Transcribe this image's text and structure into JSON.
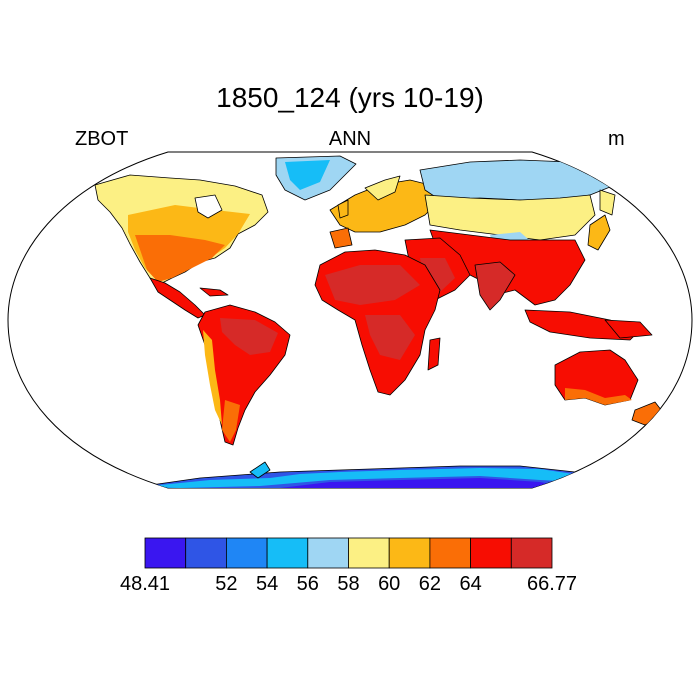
{
  "title": "1850_124 (yrs 10-19)",
  "subtitle_left": "ZBOT",
  "subtitle_center": "ANN",
  "subtitle_right": "m",
  "colorbar": {
    "colors": [
      "#3a16f0",
      "#2f55e6",
      "#1f86f5",
      "#16bdf7",
      "#9fd6f3",
      "#fcf084",
      "#fcb816",
      "#fa6e06",
      "#f70d02",
      "#d62a28"
    ],
    "labels": [
      "48.41",
      "52",
      "54",
      "56",
      "58",
      "60",
      "62",
      "64",
      "66.77"
    ]
  },
  "map": {
    "projection": "robinson",
    "ocean_color": "#ffffff",
    "coastline_color": "#000000"
  }
}
